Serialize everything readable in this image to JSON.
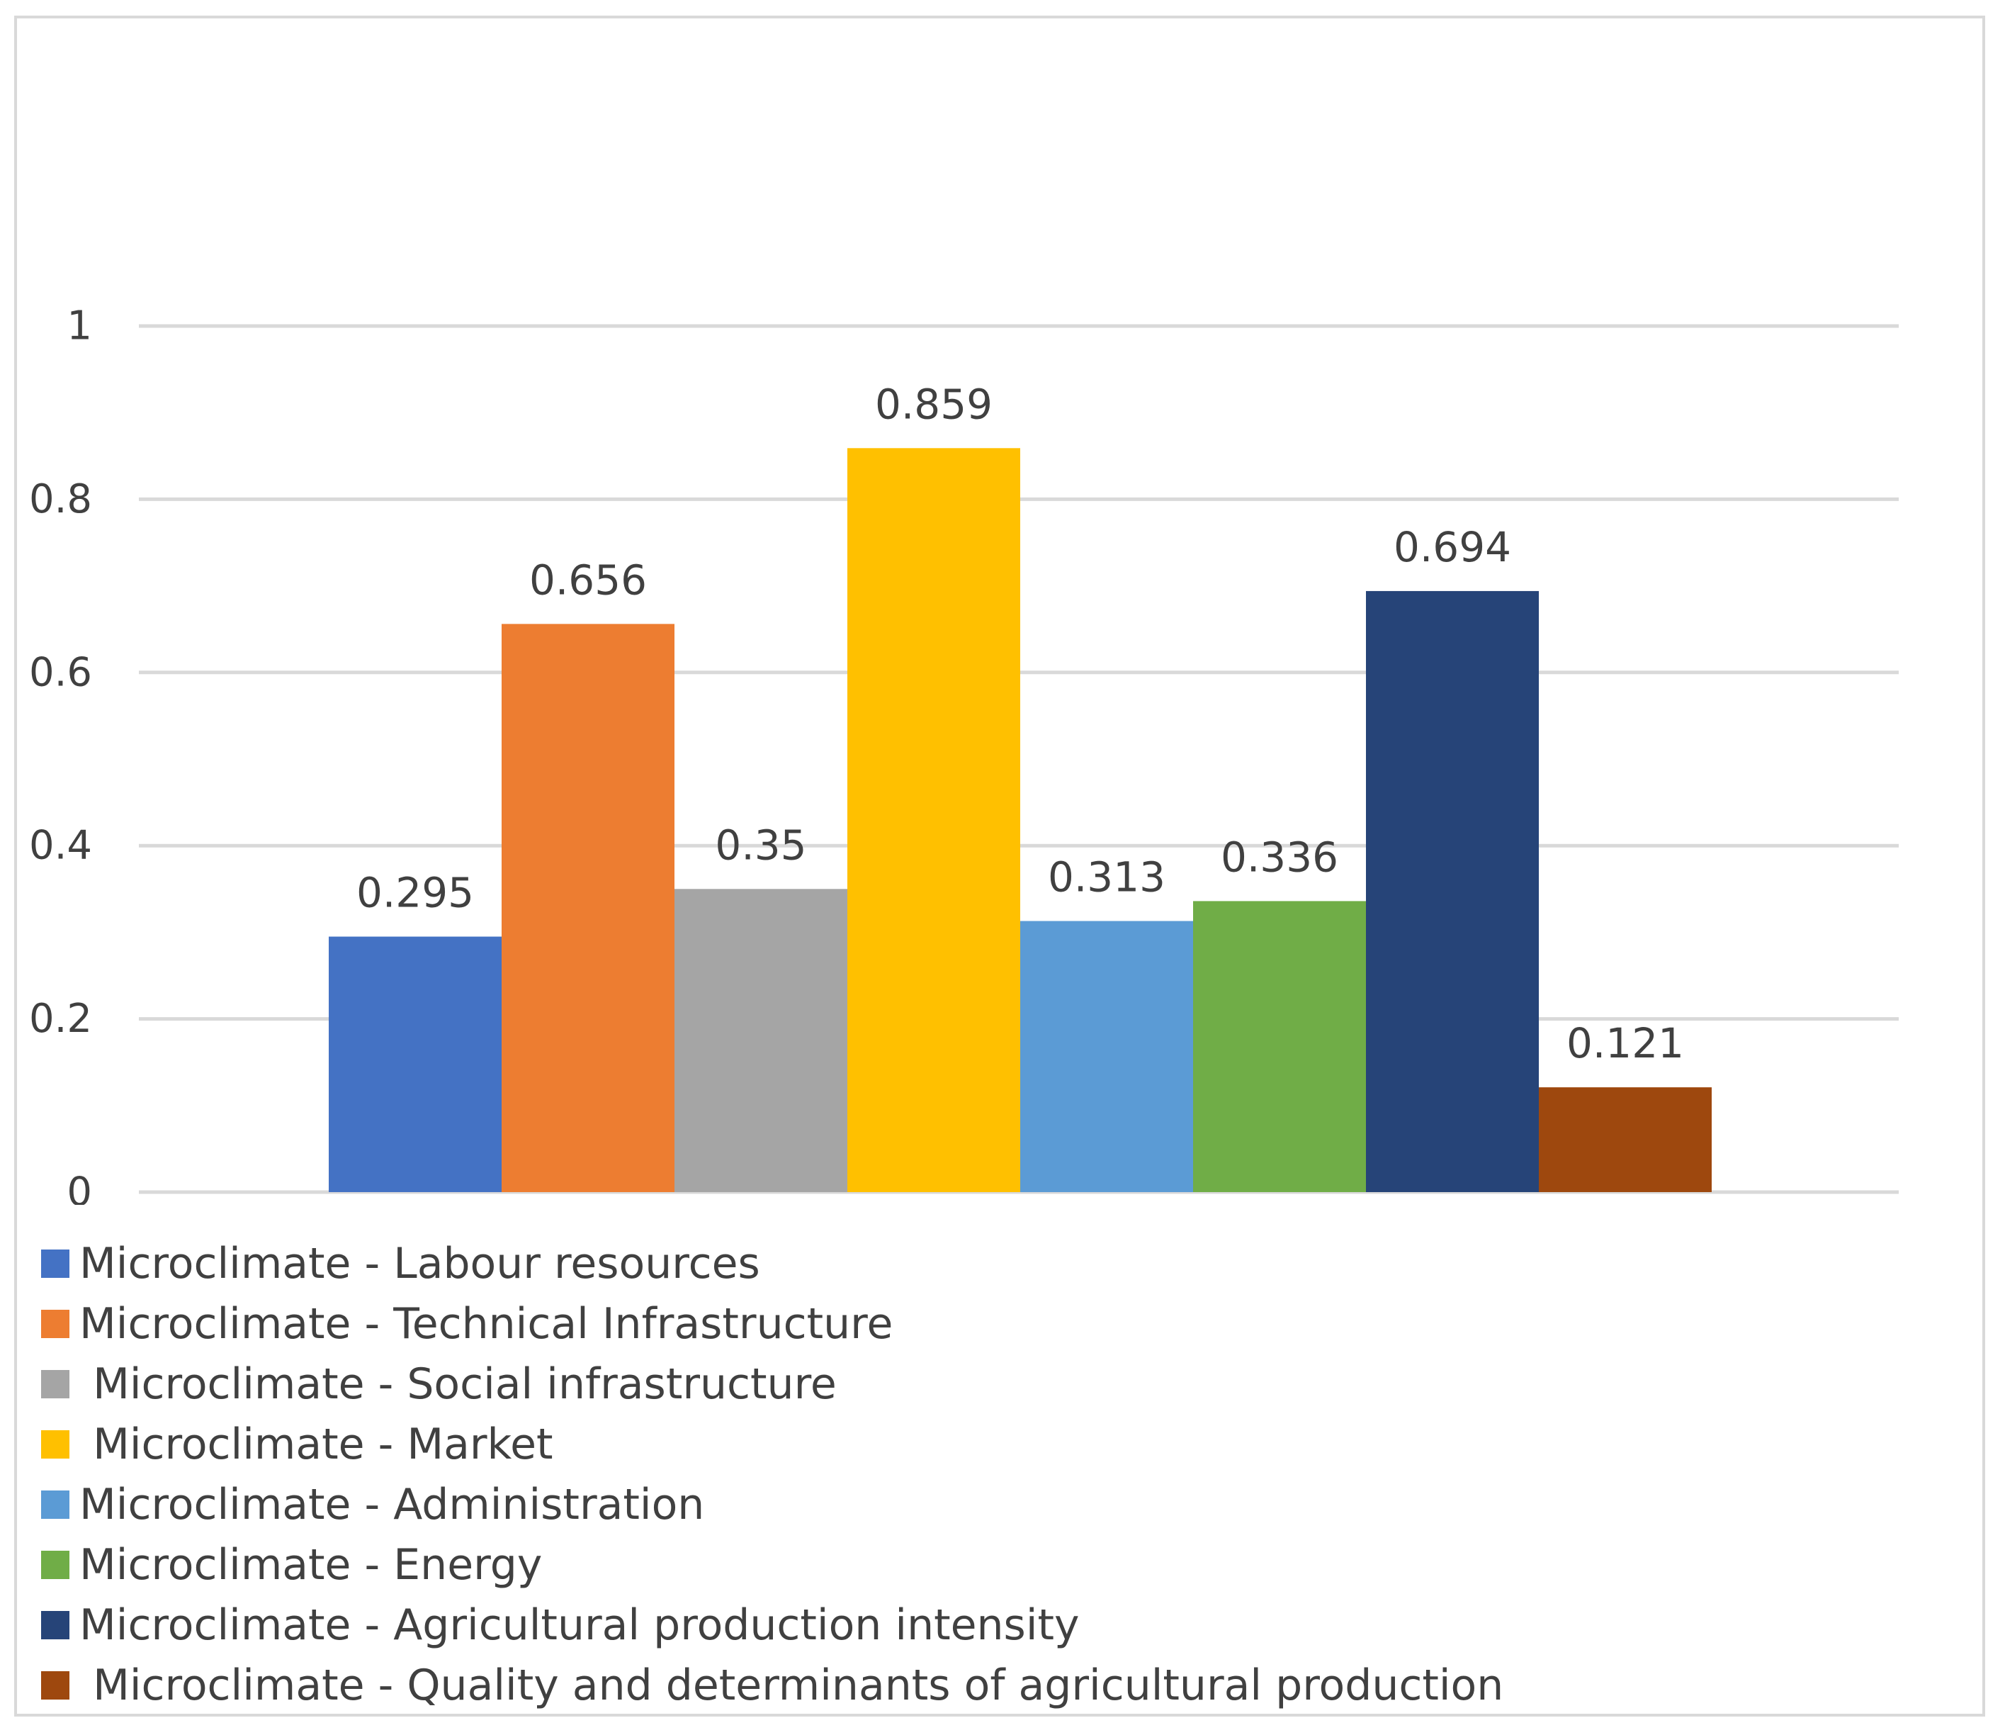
{
  "chart_data": {
    "type": "bar",
    "title": "",
    "xlabel": "",
    "ylabel": "",
    "ylim": [
      0,
      1
    ],
    "yticks": [
      0,
      0.2,
      0.4,
      0.6,
      0.8,
      1
    ],
    "ytick_labels": [
      "0",
      "0.2",
      "0.4",
      "0.6",
      "0.8",
      "1"
    ],
    "grid": true,
    "legend_position": "bottom-left",
    "series": [
      {
        "name": "Microclimate - Labour resources",
        "legend_label": "Microclimate - Labour resources",
        "value": 0.295,
        "value_label": "0.295",
        "color": "#4472C4"
      },
      {
        "name": "Microclimate - Technical Infrastructure",
        "legend_label": "Microclimate - Technical Infrastructure",
        "value": 0.656,
        "value_label": "0.656",
        "color": "#ED7D31"
      },
      {
        "name": "Microclimate - Social infrastructure",
        "legend_label": " Microclimate - Social infrastructure",
        "value": 0.35,
        "value_label": "0.35",
        "color": "#A5A5A5"
      },
      {
        "name": "Microclimate - Market",
        "legend_label": " Microclimate - Market",
        "value": 0.859,
        "value_label": "0.859",
        "color": "#FFC000"
      },
      {
        "name": "Microclimate - Administration",
        "legend_label": "Microclimate - Administration",
        "value": 0.313,
        "value_label": "0.313",
        "color": "#5B9BD5"
      },
      {
        "name": "Microclimate - Energy",
        "legend_label": "Microclimate - Energy",
        "value": 0.336,
        "value_label": "0.336",
        "color": "#70AD47"
      },
      {
        "name": "Microclimate - Agricultural production intensity",
        "legend_label": "Microclimate - Agricultural production intensity",
        "value": 0.694,
        "value_label": "0.694",
        "color": "#264478"
      },
      {
        "name": "Microclimate - Quality and determinants of agricultural production",
        "legend_label": " Microclimate - Quality and determinants of agricultural production",
        "value": 0.121,
        "value_label": "0.121",
        "color": "#9E480E"
      }
    ]
  }
}
